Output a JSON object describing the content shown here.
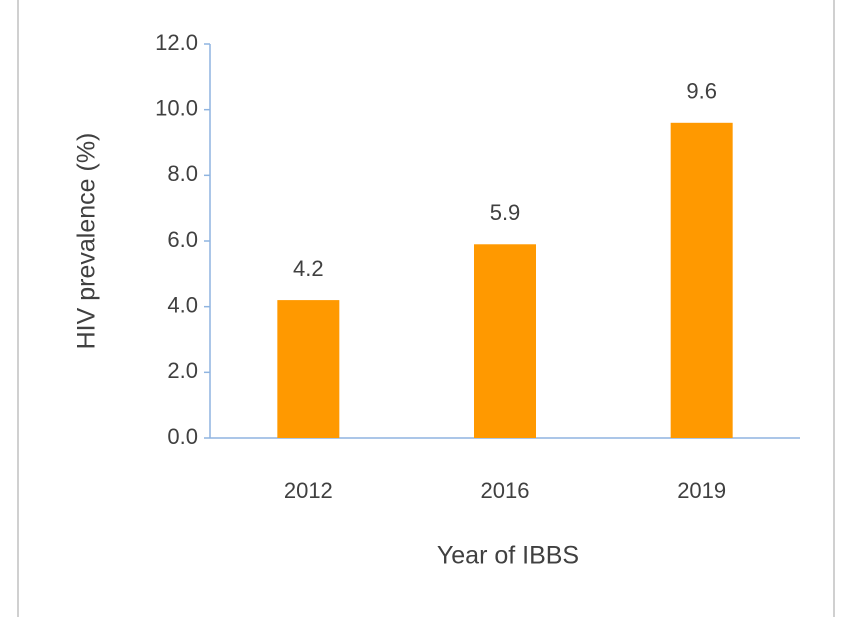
{
  "chart_data": {
    "type": "bar",
    "categories": [
      "2012",
      "2016",
      "2019"
    ],
    "values": [
      4.2,
      5.9,
      9.6
    ],
    "color": "#ff9900",
    "y_label": "HIV prevalence (%)",
    "x_label": "Year of IBBS",
    "ylim": [
      0,
      12
    ],
    "yticks": [
      {
        "value": 0,
        "label": "0.0"
      },
      {
        "value": 2,
        "label": "2.0"
      },
      {
        "value": 4,
        "label": "4.0"
      },
      {
        "value": 6,
        "label": "6.0"
      },
      {
        "value": 8,
        "label": "8.0"
      },
      {
        "value": 10,
        "label": "10.0"
      },
      {
        "value": 12,
        "label": "12.0"
      }
    ],
    "grid": false
  }
}
